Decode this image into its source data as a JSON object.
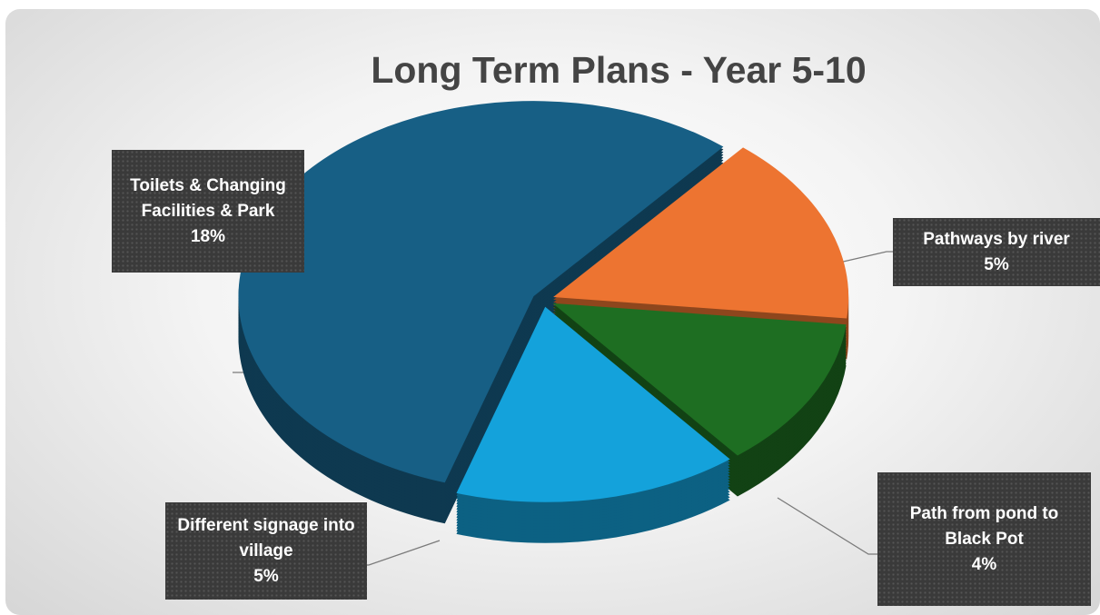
{
  "chart_data": {
    "type": "pie3d",
    "title": "Long Term Plans - Year 5-10",
    "categories": [
      "Toilets & Changing Facilities & Park",
      "Pathways by river",
      "Path from pond to Black Pot",
      "Different signage into village"
    ],
    "values": [
      18,
      5,
      4,
      5
    ],
    "value_labels": [
      "18%",
      "5%",
      "4%",
      "5%"
    ],
    "colors": [
      "#175f85",
      "#ed7431",
      "#1e6e22",
      "#14a2db"
    ]
  }
}
